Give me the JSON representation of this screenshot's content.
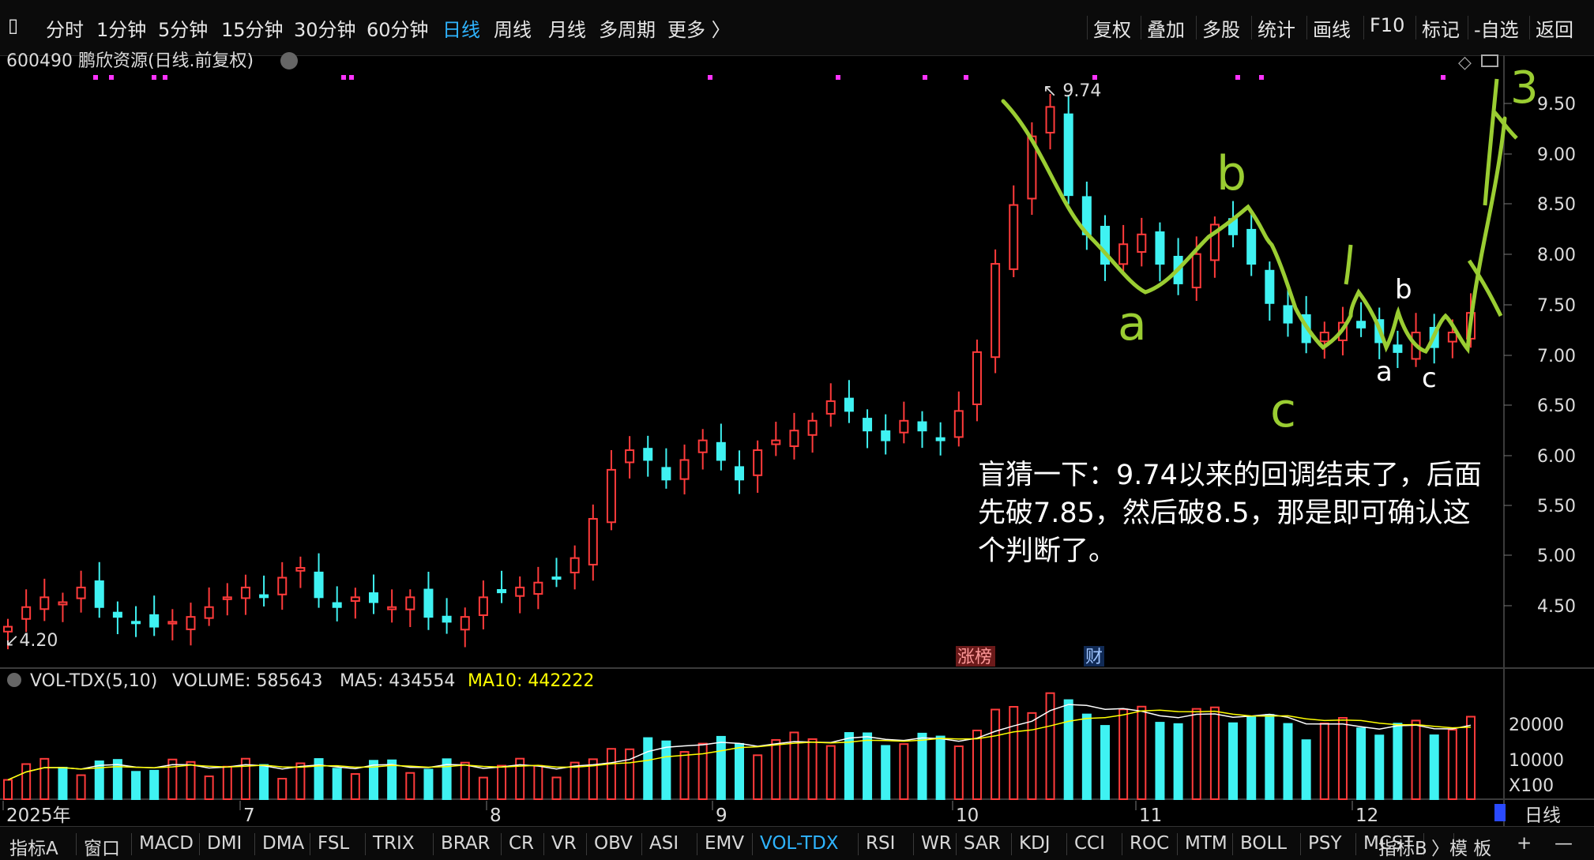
{
  "toolbar": {
    "period_tabs": [
      "分时",
      "1分钟",
      "5分钟",
      "15分钟",
      "30分钟",
      "60分钟",
      "日线",
      "周线",
      "月线",
      "多周期",
      "更多 〉"
    ],
    "active_tab": "日线",
    "right_buttons": [
      "复权",
      "叠加",
      "多股",
      "统计",
      "画线",
      "F10",
      "标记",
      "-自选",
      "返回"
    ]
  },
  "chart_header": {
    "title": "600490 鹏欣资源(日线.前复权)"
  },
  "price_axis": [
    "9.50",
    "9.00",
    "8.50",
    "8.00",
    "7.50",
    "7.00",
    "6.50",
    "6.00",
    "5.50",
    "5.00",
    "4.50"
  ],
  "price_markers": {
    "high": "9.74",
    "low": "4.20"
  },
  "event_tags": {
    "zhang": "涨榜",
    "cai": "财"
  },
  "volume_header": {
    "name": "VOL-TDX(5,10)",
    "volume": "VOLUME: 585643",
    "ma5": "MA5: 434554",
    "ma10": "MA10: 442222"
  },
  "volume_axis": [
    "20000",
    "10000"
  ],
  "volume_unit": "X100",
  "time_axis": [
    "2025年",
    "7",
    "8",
    "9",
    "10",
    "11",
    "12"
  ],
  "period_button": "日线",
  "annotation_text": "盲猜一下：9.74以来的回调结束了，后面先破7.85，然后破8.5，那是即可确认这个判断了。",
  "handwriting": {
    "a_big": "a",
    "b_big": "b",
    "c_big": "c",
    "a_small": "a",
    "b_small": "b",
    "c_small": "c",
    "three": "3"
  },
  "indicator_tabs": [
    "指标A",
    "窗口",
    "MACD",
    "DMI",
    "DMA",
    "FSL",
    "TRIX",
    "BRAR",
    "CR",
    "VR",
    "OBV",
    "ASI",
    "EMV",
    "VOL-TDX",
    "RSI",
    "WR",
    "SAR",
    "KDJ",
    "CCI",
    "ROC",
    "MTM",
    "BOLL",
    "PSY",
    "MCST",
    "〉"
  ],
  "active_indicator": "VOL-TDX",
  "bottom_right": [
    "指标B",
    "模 板",
    "+",
    "—"
  ],
  "colors": {
    "up": "#ff3b3b",
    "down": "#3ff2f2",
    "accent": "#2fb4ff",
    "ma5": "#ffffff",
    "ma10": "#ffff00",
    "handwriting": "#9acd32"
  },
  "chart_data": {
    "type": "candlestick",
    "series_prices": [
      4.3,
      4.5,
      4.6,
      4.55,
      4.7,
      4.5,
      4.4,
      4.35,
      4.3,
      4.35,
      4.4,
      4.5,
      4.6,
      4.7,
      4.6,
      4.8,
      4.9,
      4.6,
      4.5,
      4.6,
      4.55,
      4.5,
      4.6,
      4.4,
      4.35,
      4.4,
      4.6,
      4.65,
      4.7,
      4.75,
      4.8,
      5.0,
      5.4,
      5.9,
      6.1,
      6.0,
      5.8,
      6.0,
      6.2,
      6.0,
      5.8,
      6.1,
      6.2,
      6.3,
      6.4,
      6.6,
      6.5,
      6.3,
      6.2,
      6.4,
      6.3,
      6.2,
      6.5,
      7.1,
      8.0,
      8.6,
      9.3,
      9.6,
      8.7,
      8.3,
      8.0,
      8.2,
      8.3,
      8.0,
      7.8,
      8.1,
      8.4,
      8.3,
      8.0,
      7.6,
      7.4,
      7.2,
      7.3,
      7.4,
      7.35,
      7.2,
      7.1,
      7.3,
      7.15,
      7.3,
      7.5
    ],
    "price_range": [
      4.2,
      9.74
    ],
    "volume_range": [
      0,
      27000
    ]
  }
}
